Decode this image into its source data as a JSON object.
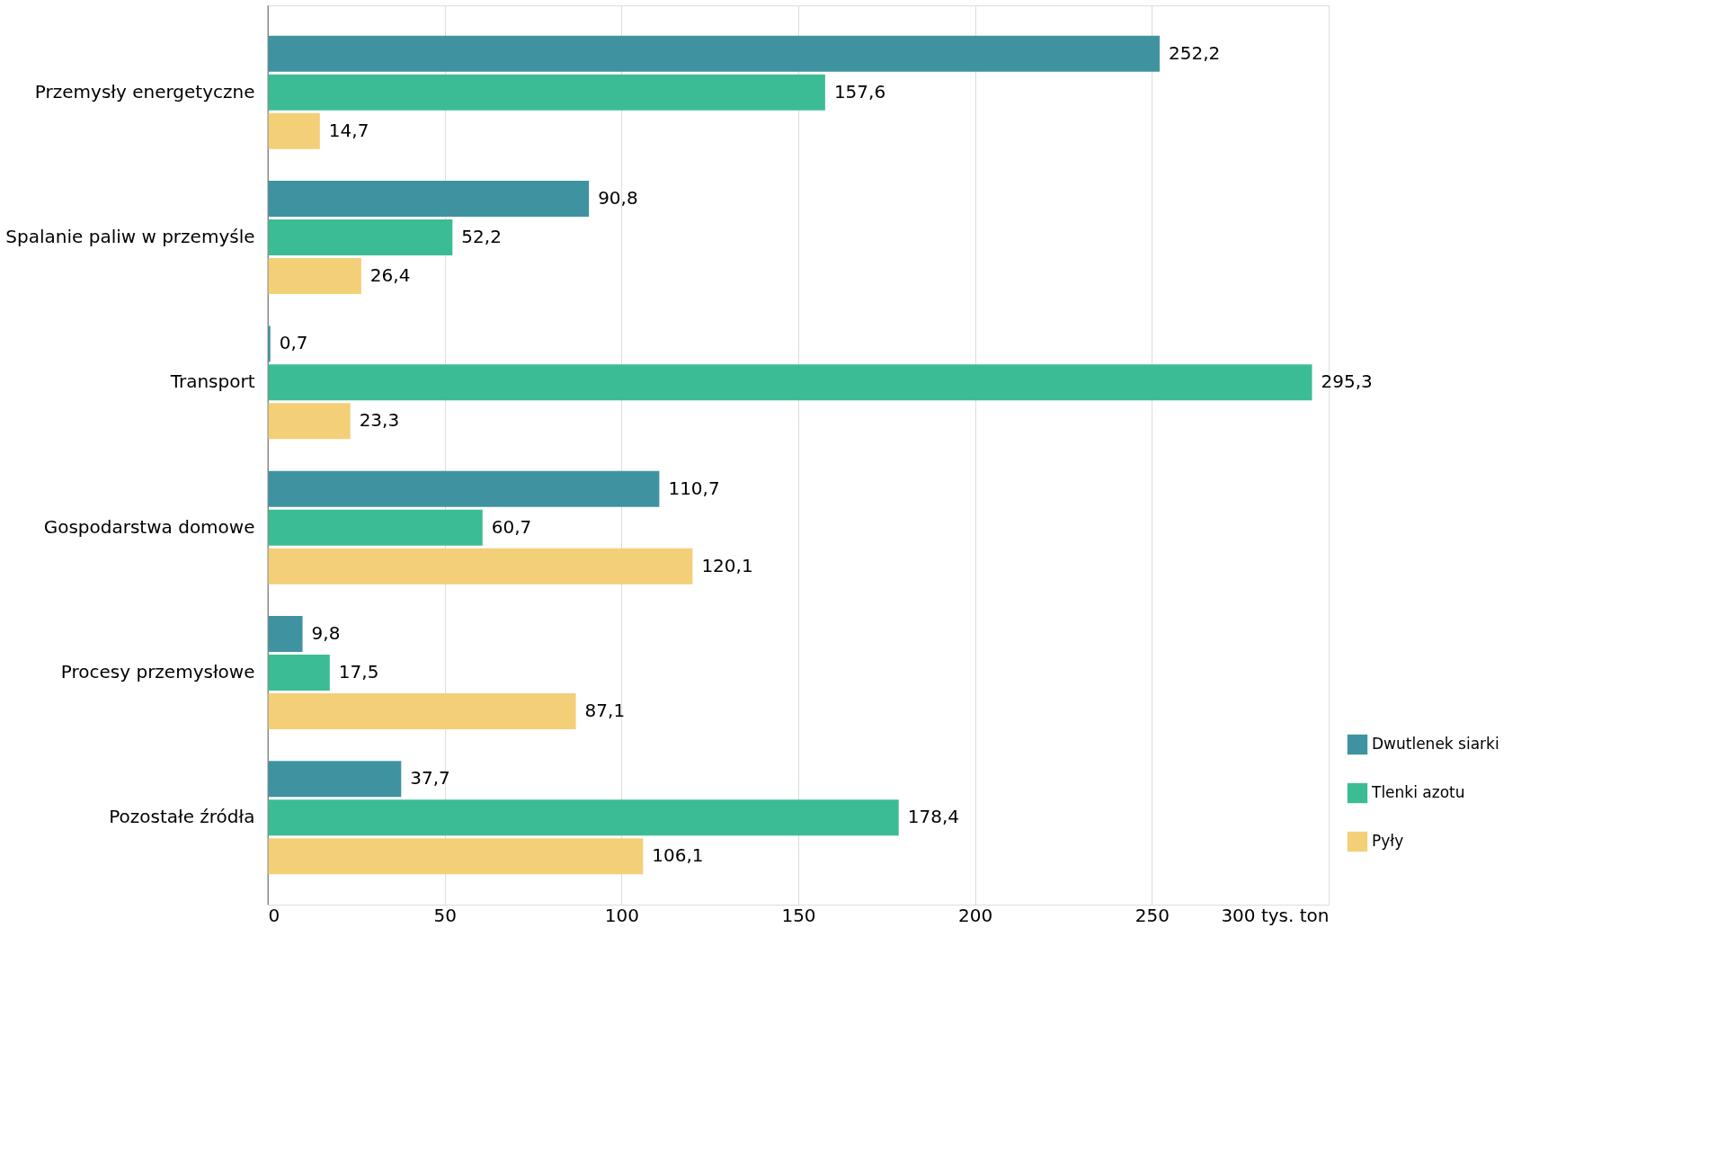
{
  "chart_data": {
    "type": "bar",
    "orientation": "horizontal",
    "categories": [
      "Przemysły energetyczne",
      "Spalanie paliw w przemyśle",
      "Transport",
      "Gospodarstwa domowe",
      "Procesy przemysłowe",
      "Pozostałe źródła"
    ],
    "series": [
      {
        "name": "Dwutlenek siarki",
        "color": "#3f93a0",
        "values": [
          252.2,
          90.8,
          0.7,
          110.7,
          9.8,
          37.7
        ],
        "value_labels": [
          "252,2",
          "90,8",
          "0,7",
          "110,7",
          "9,8",
          "37,7"
        ]
      },
      {
        "name": "Tlenki azotu",
        "color": "#3cbc95",
        "values": [
          157.6,
          52.2,
          295.3,
          60.7,
          17.5,
          178.4
        ],
        "value_labels": [
          "157,6",
          "52,2",
          "295,3",
          "60,7",
          "17,5",
          "178,4"
        ]
      },
      {
        "name": "Pyły",
        "color": "#f3cf78",
        "values": [
          14.7,
          26.4,
          23.3,
          120.1,
          87.1,
          106.1
        ],
        "value_labels": [
          "14,7",
          "26,4",
          "23,3",
          "120,1",
          "87,1",
          "106,1"
        ]
      }
    ],
    "xlim": [
      0,
      300
    ],
    "xticks": [
      0,
      50,
      100,
      150,
      200,
      250,
      {
        "value": 300,
        "label": "300 tys. ton"
      }
    ],
    "grid": "x",
    "legend": "bottom right"
  }
}
